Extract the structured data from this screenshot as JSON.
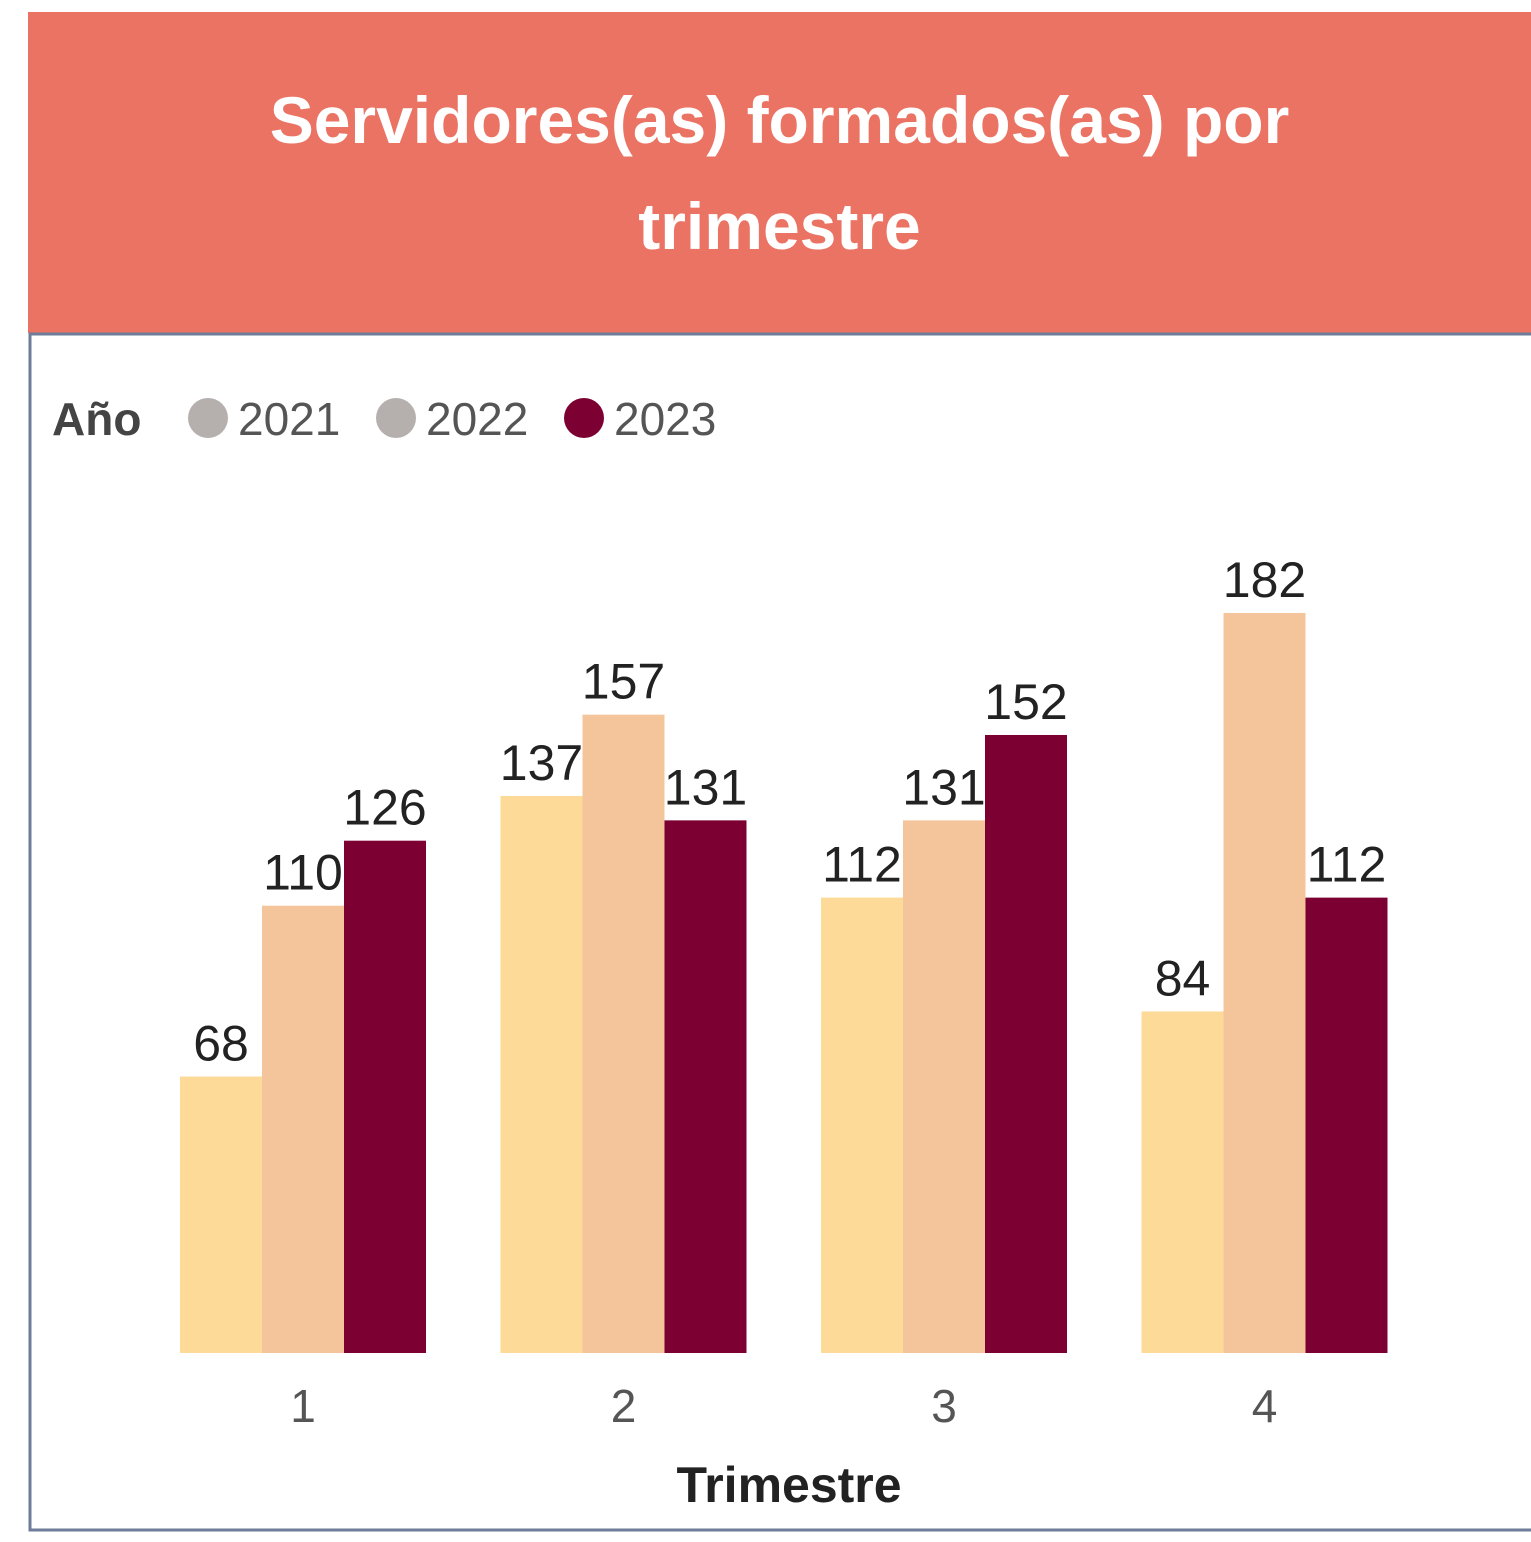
{
  "chart_data": {
    "type": "bar",
    "title": "Servidores(as) formados(as) por trimestre",
    "legend_title": "Año",
    "x_label": "Trimestre",
    "categories": [
      "1",
      "2",
      "3",
      "4"
    ],
    "series": [
      {
        "name": "2021",
        "color": "#FDDA97",
        "legend_color": "#B5B0AD",
        "values": [
          68,
          137,
          112,
          84
        ]
      },
      {
        "name": "2022",
        "color": "#F4C59B",
        "legend_color": "#B5B0AD",
        "values": [
          110,
          157,
          131,
          182
        ]
      },
      {
        "name": "2023",
        "color": "#7D0033",
        "legend_color": "#7D0033",
        "values": [
          126,
          131,
          152,
          112
        ]
      }
    ],
    "legend": "top-left"
  }
}
